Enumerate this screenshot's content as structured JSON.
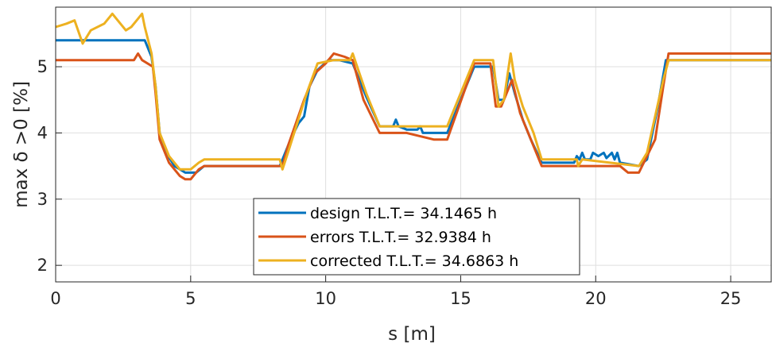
{
  "chart_data": {
    "type": "line",
    "title": "",
    "xlabel": "s [m]",
    "ylabel": "max δ >0 [%]",
    "xlim": [
      0,
      26.5
    ],
    "ylim": [
      1.75,
      5.9
    ],
    "xticks": [
      "0",
      "5",
      "10",
      "15",
      "20",
      "25"
    ],
    "yticks": [
      "2",
      "3",
      "4",
      "5"
    ],
    "grid": true,
    "legend_position": "bottom-center",
    "series": [
      {
        "name": "design T.L.T.= 34.1465 h",
        "color": "#0072BD",
        "points": [
          [
            0,
            5.4
          ],
          [
            3.3,
            5.4
          ],
          [
            3.55,
            5.15
          ],
          [
            3.7,
            4.7
          ],
          [
            3.85,
            4.0
          ],
          [
            4.1,
            3.7
          ],
          [
            4.4,
            3.5
          ],
          [
            4.8,
            3.4
          ],
          [
            5.2,
            3.4
          ],
          [
            5.5,
            3.5
          ],
          [
            8.3,
            3.5
          ],
          [
            8.4,
            3.6
          ],
          [
            8.7,
            3.9
          ],
          [
            9.0,
            4.15
          ],
          [
            9.2,
            4.25
          ],
          [
            9.4,
            4.7
          ],
          [
            9.7,
            4.95
          ],
          [
            10.1,
            5.1
          ],
          [
            10.5,
            5.1
          ],
          [
            11.0,
            5.05
          ],
          [
            11.5,
            4.55
          ],
          [
            12.0,
            4.1
          ],
          [
            12.5,
            4.1
          ],
          [
            12.6,
            4.2
          ],
          [
            12.7,
            4.1
          ],
          [
            13.0,
            4.05
          ],
          [
            13.4,
            4.05
          ],
          [
            13.5,
            4.1
          ],
          [
            13.6,
            4.0
          ],
          [
            14.5,
            4.0
          ],
          [
            15.0,
            4.5
          ],
          [
            15.5,
            5.0
          ],
          [
            16.2,
            5.0
          ],
          [
            16.4,
            4.5
          ],
          [
            16.6,
            4.5
          ],
          [
            16.8,
            4.9
          ],
          [
            17.0,
            4.6
          ],
          [
            17.3,
            4.2
          ],
          [
            17.6,
            3.9
          ],
          [
            18.0,
            3.55
          ],
          [
            19.2,
            3.55
          ],
          [
            19.3,
            3.65
          ],
          [
            19.4,
            3.6
          ],
          [
            19.5,
            3.7
          ],
          [
            19.6,
            3.6
          ],
          [
            19.8,
            3.6
          ],
          [
            19.9,
            3.7
          ],
          [
            20.1,
            3.65
          ],
          [
            20.3,
            3.7
          ],
          [
            20.4,
            3.62
          ],
          [
            20.6,
            3.7
          ],
          [
            20.7,
            3.6
          ],
          [
            20.8,
            3.7
          ],
          [
            20.9,
            3.55
          ],
          [
            21.6,
            3.5
          ],
          [
            21.9,
            3.6
          ],
          [
            22.3,
            4.4
          ],
          [
            22.6,
            5.1
          ],
          [
            26.5,
            5.1
          ]
        ]
      },
      {
        "name": "errors T.L.T.= 32.9384 h",
        "color": "#D95319",
        "points": [
          [
            0,
            5.1
          ],
          [
            2.9,
            5.1
          ],
          [
            3.05,
            5.2
          ],
          [
            3.2,
            5.1
          ],
          [
            3.6,
            5.0
          ],
          [
            3.7,
            4.6
          ],
          [
            3.85,
            3.9
          ],
          [
            4.2,
            3.55
          ],
          [
            4.6,
            3.35
          ],
          [
            4.8,
            3.3
          ],
          [
            5.0,
            3.3
          ],
          [
            5.3,
            3.45
          ],
          [
            5.5,
            3.5
          ],
          [
            8.4,
            3.5
          ],
          [
            8.6,
            3.8
          ],
          [
            9.2,
            4.5
          ],
          [
            9.6,
            4.9
          ],
          [
            10.0,
            5.05
          ],
          [
            10.3,
            5.2
          ],
          [
            10.7,
            5.15
          ],
          [
            11.0,
            5.1
          ],
          [
            11.4,
            4.5
          ],
          [
            12.0,
            4.0
          ],
          [
            13.0,
            4.0
          ],
          [
            14.0,
            3.9
          ],
          [
            14.5,
            3.9
          ],
          [
            15.5,
            5.05
          ],
          [
            16.1,
            5.05
          ],
          [
            16.3,
            4.4
          ],
          [
            16.5,
            4.4
          ],
          [
            16.9,
            4.8
          ],
          [
            17.2,
            4.3
          ],
          [
            17.6,
            3.9
          ],
          [
            18.0,
            3.5
          ],
          [
            20.9,
            3.5
          ],
          [
            21.2,
            3.4
          ],
          [
            21.6,
            3.4
          ],
          [
            22.2,
            3.9
          ],
          [
            22.5,
            4.7
          ],
          [
            22.7,
            5.2
          ],
          [
            26.5,
            5.2
          ]
        ]
      },
      {
        "name": "corrected T.L.T.= 34.6863 h",
        "color": "#EDB120",
        "points": [
          [
            0,
            5.6
          ],
          [
            0.4,
            5.65
          ],
          [
            0.7,
            5.7
          ],
          [
            1.0,
            5.35
          ],
          [
            1.3,
            5.55
          ],
          [
            1.8,
            5.65
          ],
          [
            2.1,
            5.8
          ],
          [
            2.3,
            5.7
          ],
          [
            2.6,
            5.55
          ],
          [
            2.8,
            5.6
          ],
          [
            3.0,
            5.7
          ],
          [
            3.2,
            5.8
          ],
          [
            3.3,
            5.6
          ],
          [
            3.55,
            5.2
          ],
          [
            3.7,
            4.7
          ],
          [
            3.85,
            4.0
          ],
          [
            4.2,
            3.65
          ],
          [
            4.6,
            3.45
          ],
          [
            5.0,
            3.45
          ],
          [
            5.3,
            3.55
          ],
          [
            5.5,
            3.6
          ],
          [
            8.3,
            3.6
          ],
          [
            8.4,
            3.45
          ],
          [
            8.6,
            3.7
          ],
          [
            9.3,
            4.6
          ],
          [
            9.7,
            5.05
          ],
          [
            10.3,
            5.1
          ],
          [
            10.6,
            5.1
          ],
          [
            10.9,
            5.1
          ],
          [
            11.0,
            5.2
          ],
          [
            11.5,
            4.6
          ],
          [
            12.0,
            4.1
          ],
          [
            14.5,
            4.1
          ],
          [
            15.0,
            4.6
          ],
          [
            15.5,
            5.1
          ],
          [
            16.2,
            5.1
          ],
          [
            16.4,
            4.4
          ],
          [
            16.6,
            4.5
          ],
          [
            16.85,
            5.2
          ],
          [
            17.0,
            4.8
          ],
          [
            17.3,
            4.4
          ],
          [
            17.7,
            4.0
          ],
          [
            18.0,
            3.6
          ],
          [
            19.3,
            3.6
          ],
          [
            19.35,
            3.5
          ],
          [
            19.5,
            3.6
          ],
          [
            21.6,
            3.5
          ],
          [
            21.9,
            3.7
          ],
          [
            22.5,
            4.8
          ],
          [
            22.7,
            5.1
          ],
          [
            26.5,
            5.1
          ]
        ]
      }
    ]
  }
}
